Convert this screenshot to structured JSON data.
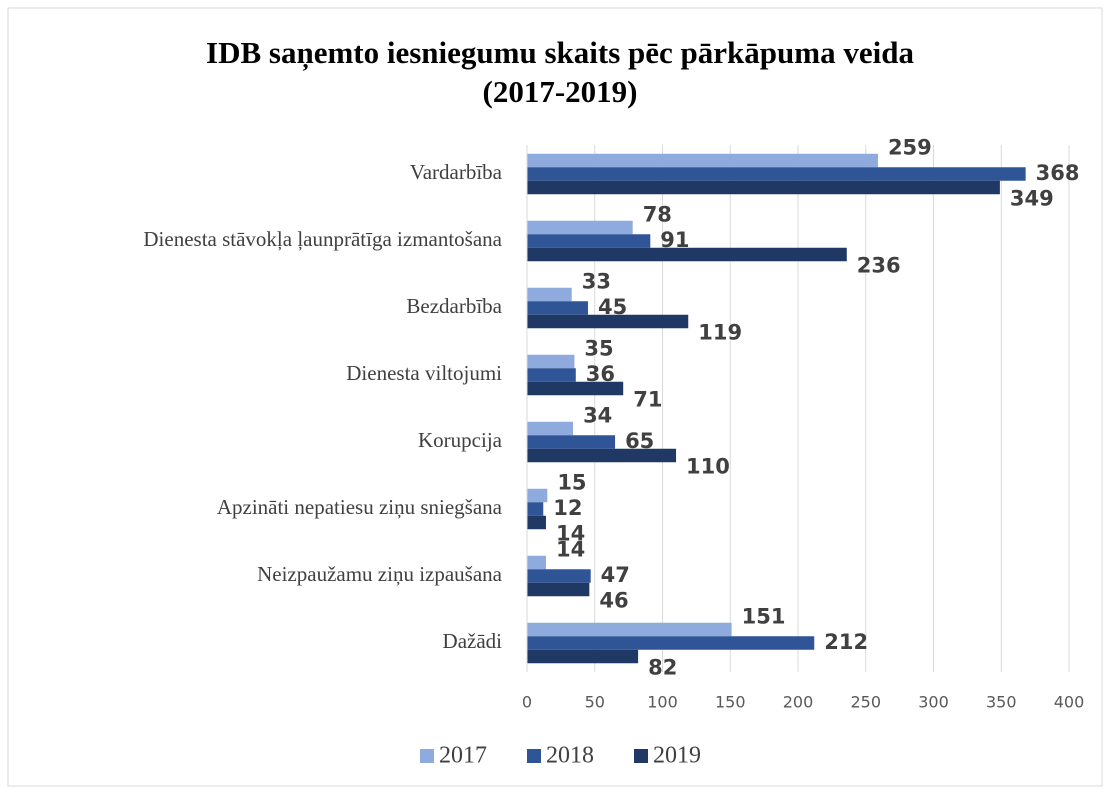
{
  "chart_data": {
    "type": "bar",
    "orientation": "horizontal",
    "title": "IDB saņemto iesniegumu skaits pēc pārkāpuma veida",
    "subtitle": "(2017-2019)",
    "categories": [
      "Vardarbība",
      "Dienesta stāvokļa ļaunprātīga izmantošana",
      "Bezdarbība",
      "Dienesta viltojumi",
      "Korupcija",
      "Apzināti nepatiesu ziņu sniegšana",
      "Neizpaužamu ziņu izpaušana",
      "Dažādi"
    ],
    "series": [
      {
        "name": "2017",
        "color": "#8faadc",
        "values": [
          259,
          78,
          33,
          35,
          34,
          15,
          14,
          151
        ]
      },
      {
        "name": "2018",
        "color": "#2f5597",
        "values": [
          368,
          91,
          45,
          36,
          65,
          12,
          47,
          212
        ]
      },
      {
        "name": "2019",
        "color": "#203864",
        "values": [
          349,
          236,
          119,
          71,
          110,
          14,
          46,
          82
        ]
      }
    ],
    "xlim": [
      0,
      400
    ],
    "xticks": [
      0,
      50,
      100,
      150,
      200,
      250,
      300,
      350,
      400
    ],
    "grid": true,
    "legend": "bottom"
  }
}
